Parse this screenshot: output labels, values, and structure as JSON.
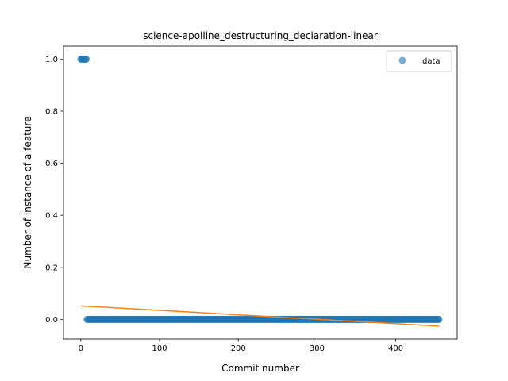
{
  "chart_data": {
    "type": "scatter",
    "title": "science-apolline_destructuring_declaration-linear",
    "xlabel": "Commit number",
    "ylabel": "Number of instance of a feature",
    "xlim": [
      -22,
      478
    ],
    "ylim": [
      -0.075,
      1.05
    ],
    "xticks": [
      0,
      100,
      200,
      300,
      400
    ],
    "xtick_labels": [
      "0",
      "100",
      "200",
      "300",
      "400"
    ],
    "yticks": [
      0.0,
      0.2,
      0.4,
      0.6,
      0.8,
      1.0
    ],
    "ytick_labels": [
      "0.0",
      "0.2",
      "0.4",
      "0.6",
      "0.8",
      "1.0"
    ],
    "grid": false,
    "legend_position": "top-right",
    "legend": [
      "data"
    ],
    "series": [
      {
        "name": "data",
        "kind": "scatter",
        "color": "#1f77b4",
        "alpha": 0.6,
        "segments": [
          {
            "x_start": 0,
            "x_end": 7,
            "y": 1.0
          },
          {
            "x_start": 8,
            "x_end": 455,
            "y": 0.0
          }
        ]
      },
      {
        "kind": "line",
        "color": "#ff7f0e",
        "x": [
          0,
          455
        ],
        "y": [
          0.052,
          -0.026
        ]
      }
    ]
  }
}
